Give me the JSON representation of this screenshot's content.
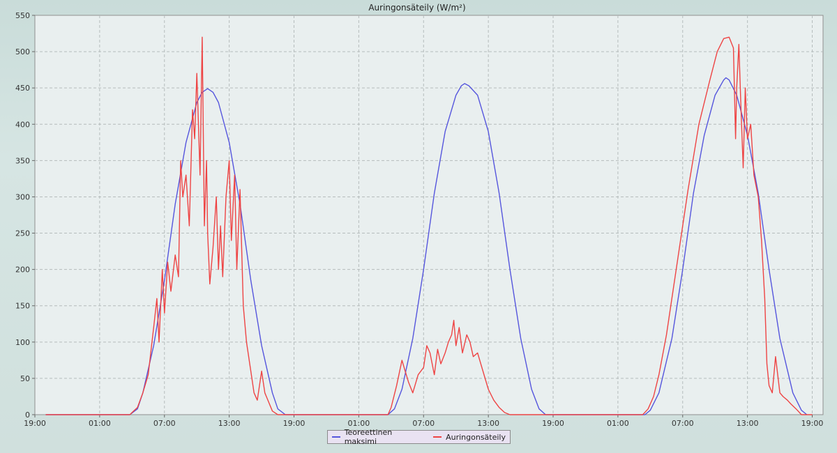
{
  "chart_data": {
    "type": "line",
    "title": "Auringonsäteily (W/m²)",
    "xlabel": "",
    "ylabel": "",
    "x_tick_labels": [
      "19:00",
      "01:00",
      "07:00",
      "13:00",
      "19:00",
      "01:00",
      "07:00",
      "13:00",
      "19:00",
      "01:00",
      "07:00",
      "13:00",
      "19:00"
    ],
    "x_tick_hours": [
      0,
      6,
      12,
      18,
      24,
      30,
      36,
      42,
      48,
      54,
      60,
      66,
      72
    ],
    "xlim_hours": [
      0,
      73
    ],
    "ylim": [
      0,
      550
    ],
    "y_ticks": [
      0,
      50,
      100,
      150,
      200,
      250,
      300,
      350,
      400,
      450,
      500,
      550
    ],
    "grid": true,
    "legend_position": "bottom-center",
    "series": [
      {
        "name": "Teoreettinen maksimi",
        "color": "#5555dd",
        "points": [
          [
            1,
            0
          ],
          [
            8.8,
            0
          ],
          [
            9.5,
            8
          ],
          [
            10,
            30
          ],
          [
            11,
            95
          ],
          [
            12,
            185
          ],
          [
            13,
            290
          ],
          [
            14,
            375
          ],
          [
            15,
            430
          ],
          [
            15.5,
            444
          ],
          [
            16,
            449
          ],
          [
            16.5,
            444
          ],
          [
            17,
            430
          ],
          [
            18,
            375
          ],
          [
            19,
            290
          ],
          [
            20,
            185
          ],
          [
            21,
            95
          ],
          [
            22,
            30
          ],
          [
            22.5,
            8
          ],
          [
            23.2,
            0
          ],
          [
            32.7,
            0
          ],
          [
            33.3,
            8
          ],
          [
            34,
            35
          ],
          [
            35,
            105
          ],
          [
            36,
            200
          ],
          [
            37,
            305
          ],
          [
            38,
            390
          ],
          [
            39,
            440
          ],
          [
            39.5,
            453
          ],
          [
            39.8,
            456
          ],
          [
            40.2,
            453
          ],
          [
            41,
            440
          ],
          [
            42,
            390
          ],
          [
            43,
            305
          ],
          [
            44,
            200
          ],
          [
            45,
            105
          ],
          [
            46,
            35
          ],
          [
            46.7,
            8
          ],
          [
            47.3,
            0
          ],
          [
            56.5,
            0
          ],
          [
            57,
            6
          ],
          [
            57.8,
            30
          ],
          [
            59,
            105
          ],
          [
            60,
            200
          ],
          [
            61,
            305
          ],
          [
            62,
            385
          ],
          [
            63,
            440
          ],
          [
            63.8,
            461
          ],
          [
            64,
            464
          ],
          [
            64.3,
            461
          ],
          [
            65,
            440
          ],
          [
            66,
            385
          ],
          [
            67,
            305
          ],
          [
            68,
            200
          ],
          [
            69,
            105
          ],
          [
            70.2,
            30
          ],
          [
            71,
            6
          ],
          [
            71.5,
            0
          ]
        ]
      },
      {
        "name": "Auringonsäteily",
        "color": "#ee4444",
        "points": [
          [
            1,
            0
          ],
          [
            8.8,
            0
          ],
          [
            9,
            3
          ],
          [
            9.5,
            10
          ],
          [
            10,
            30
          ],
          [
            10.5,
            55
          ],
          [
            11,
            120
          ],
          [
            11.3,
            160
          ],
          [
            11.5,
            100
          ],
          [
            11.8,
            200
          ],
          [
            12,
            140
          ],
          [
            12.3,
            210
          ],
          [
            12.6,
            170
          ],
          [
            13,
            220
          ],
          [
            13.3,
            190
          ],
          [
            13.5,
            350
          ],
          [
            13.7,
            300
          ],
          [
            14,
            330
          ],
          [
            14.3,
            260
          ],
          [
            14.6,
            420
          ],
          [
            14.8,
            380
          ],
          [
            15,
            470
          ],
          [
            15.3,
            330
          ],
          [
            15.5,
            520
          ],
          [
            15.7,
            260
          ],
          [
            15.9,
            350
          ],
          [
            16,
            250
          ],
          [
            16.2,
            180
          ],
          [
            16.5,
            230
          ],
          [
            16.8,
            300
          ],
          [
            17,
            200
          ],
          [
            17.2,
            260
          ],
          [
            17.4,
            190
          ],
          [
            17.7,
            300
          ],
          [
            18,
            350
          ],
          [
            18.2,
            240
          ],
          [
            18.5,
            330
          ],
          [
            18.7,
            200
          ],
          [
            19,
            310
          ],
          [
            19.3,
            150
          ],
          [
            19.6,
            100
          ],
          [
            20,
            60
          ],
          [
            20.3,
            30
          ],
          [
            20.6,
            20
          ],
          [
            21,
            60
          ],
          [
            21.3,
            30
          ],
          [
            22,
            5
          ],
          [
            22.5,
            0
          ],
          [
            32.7,
            0
          ],
          [
            33,
            10
          ],
          [
            33.5,
            40
          ],
          [
            34,
            75
          ],
          [
            34.3,
            60
          ],
          [
            34.6,
            45
          ],
          [
            35,
            30
          ],
          [
            35.5,
            55
          ],
          [
            36,
            65
          ],
          [
            36.3,
            95
          ],
          [
            36.6,
            85
          ],
          [
            37,
            55
          ],
          [
            37.3,
            90
          ],
          [
            37.6,
            70
          ],
          [
            38,
            85
          ],
          [
            38.3,
            100
          ],
          [
            38.6,
            110
          ],
          [
            38.8,
            130
          ],
          [
            39,
            95
          ],
          [
            39.3,
            120
          ],
          [
            39.6,
            85
          ],
          [
            40,
            110
          ],
          [
            40.3,
            100
          ],
          [
            40.6,
            80
          ],
          [
            41,
            85
          ],
          [
            41.5,
            60
          ],
          [
            42,
            35
          ],
          [
            42.5,
            20
          ],
          [
            43,
            10
          ],
          [
            43.5,
            3
          ],
          [
            44,
            0
          ],
          [
            56.3,
            0
          ],
          [
            56.8,
            8
          ],
          [
            57.3,
            25
          ],
          [
            57.8,
            55
          ],
          [
            58.5,
            110
          ],
          [
            59.5,
            210
          ],
          [
            60.5,
            310
          ],
          [
            61.5,
            400
          ],
          [
            62.5,
            460
          ],
          [
            63.2,
            500
          ],
          [
            63.8,
            518
          ],
          [
            64.3,
            520
          ],
          [
            64.7,
            505
          ],
          [
            64.9,
            380
          ],
          [
            65,
            450
          ],
          [
            65.2,
            510
          ],
          [
            65.4,
            420
          ],
          [
            65.6,
            340
          ],
          [
            65.8,
            450
          ],
          [
            66,
            380
          ],
          [
            66.3,
            400
          ],
          [
            66.6,
            330
          ],
          [
            67,
            300
          ],
          [
            67.3,
            240
          ],
          [
            67.6,
            160
          ],
          [
            67.8,
            70
          ],
          [
            68,
            40
          ],
          [
            68.3,
            30
          ],
          [
            68.6,
            80
          ],
          [
            69,
            30
          ],
          [
            69.3,
            25
          ],
          [
            69.7,
            20
          ],
          [
            70,
            15
          ],
          [
            70.5,
            8
          ],
          [
            71,
            0
          ],
          [
            72,
            0
          ]
        ]
      }
    ]
  }
}
